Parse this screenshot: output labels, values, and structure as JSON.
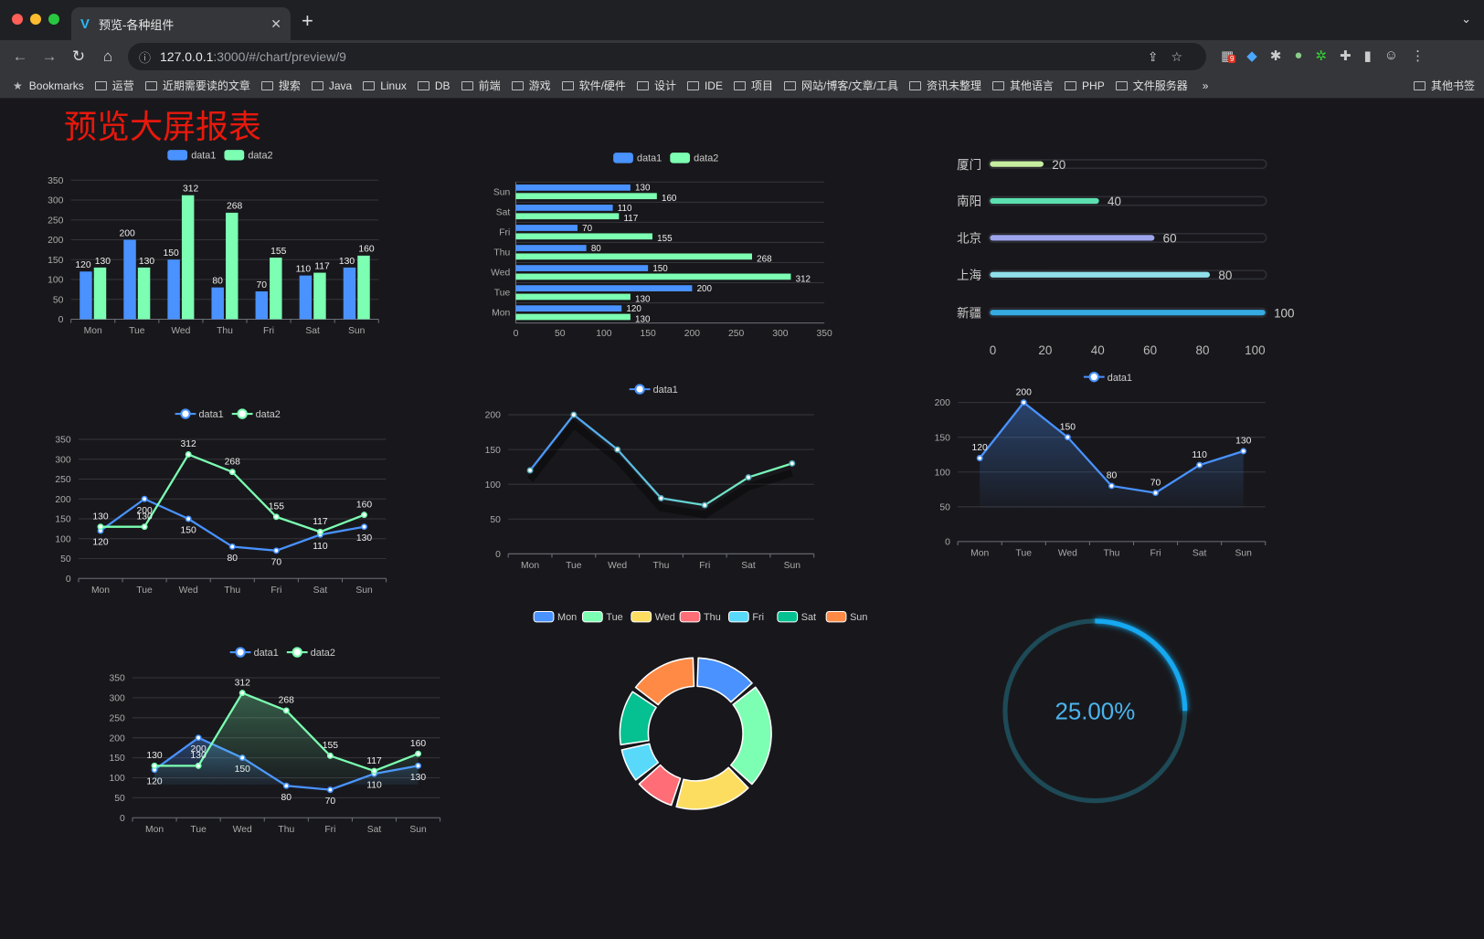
{
  "browser": {
    "tab_title": "预览-各种组件",
    "url_host": "127.0.0.1",
    "url_path": ":3000/#/chart/preview/9",
    "bookmarks_label": "Bookmarks",
    "bookmarks": [
      "运营",
      "近期需要读的文章",
      "搜索",
      "Java",
      "Linux",
      "DB",
      "前端",
      "游戏",
      "软件/硬件",
      "设计",
      "IDE",
      "项目",
      "网站/博客/文章/工具",
      "资讯未整理",
      "其他语言",
      "PHP",
      "文件服务器"
    ],
    "overflow": "»",
    "other_bookmarks": "其他书签",
    "extension_badge": "9"
  },
  "page": {
    "title": "预览大屏报表"
  },
  "colors": {
    "data1": "#4992ff",
    "data2": "#7cffb2",
    "title": "#e8180c",
    "background": "#18181c"
  },
  "chart_data": [
    {
      "id": "bar",
      "type": "bar",
      "categories": [
        "Mon",
        "Tue",
        "Wed",
        "Thu",
        "Fri",
        "Sat",
        "Sun"
      ],
      "series": [
        {
          "name": "data1",
          "values": [
            120,
            200,
            150,
            80,
            70,
            110,
            130
          ]
        },
        {
          "name": "data2",
          "values": [
            130,
            130,
            312,
            268,
            155,
            117,
            160
          ]
        }
      ],
      "ylim": [
        0,
        350
      ],
      "yticks": [
        0,
        50,
        100,
        150,
        200,
        250,
        300,
        350
      ],
      "legend": "top",
      "grid": true
    },
    {
      "id": "hbar",
      "type": "bar",
      "orientation": "horizontal",
      "categories": [
        "Mon",
        "Tue",
        "Wed",
        "Thu",
        "Fri",
        "Sat",
        "Sun"
      ],
      "series": [
        {
          "name": "data1",
          "values": [
            120,
            200,
            150,
            80,
            70,
            110,
            130
          ]
        },
        {
          "name": "data2",
          "values": [
            130,
            130,
            312,
            268,
            155,
            117,
            160
          ]
        }
      ],
      "xlim": [
        0,
        350
      ],
      "xticks": [
        0,
        50,
        100,
        150,
        200,
        250,
        300,
        350
      ],
      "legend": "top",
      "grid": true
    },
    {
      "id": "progress",
      "type": "bar",
      "orientation": "horizontal",
      "categories": [
        "厦门",
        "南阳",
        "北京",
        "上海",
        "新疆"
      ],
      "values": [
        20,
        40,
        60,
        80,
        100
      ],
      "colors": [
        "#c6eda0",
        "#5ce0b0",
        "#9ea5ec",
        "#8fe0ea",
        "#35abe2"
      ],
      "xlim": [
        0,
        100
      ],
      "xticks": [
        0,
        20,
        40,
        60,
        80,
        100
      ]
    },
    {
      "id": "line1",
      "type": "line",
      "categories": [
        "Mon",
        "Tue",
        "Wed",
        "Thu",
        "Fri",
        "Sat",
        "Sun"
      ],
      "series": [
        {
          "name": "data1",
          "values": [
            120,
            200,
            150,
            80,
            70,
            110,
            130
          ]
        },
        {
          "name": "data2",
          "values": [
            130,
            130,
            312,
            268,
            155,
            117,
            160
          ]
        }
      ],
      "ylim": [
        0,
        350
      ],
      "yticks": [
        0,
        50,
        100,
        150,
        200,
        250,
        300,
        350
      ],
      "legend": "top",
      "grid": true,
      "labels": true
    },
    {
      "id": "line2",
      "type": "line",
      "categories": [
        "Mon",
        "Tue",
        "Wed",
        "Thu",
        "Fri",
        "Sat",
        "Sun"
      ],
      "series": [
        {
          "name": "data1",
          "values": [
            120,
            200,
            150,
            80,
            70,
            110,
            130
          ]
        }
      ],
      "ylim": [
        0,
        200
      ],
      "yticks": [
        0,
        50,
        100,
        150,
        200
      ],
      "legend": "top",
      "grid": true,
      "labels": false
    },
    {
      "id": "area1",
      "type": "area",
      "categories": [
        "Mon",
        "Tue",
        "Wed",
        "Thu",
        "Fri",
        "Sat",
        "Sun"
      ],
      "series": [
        {
          "name": "data1",
          "values": [
            120,
            200,
            150,
            80,
            70,
            110,
            130
          ]
        }
      ],
      "ylim": [
        0,
        200
      ],
      "yticks": [
        0,
        50,
        100,
        150,
        200
      ],
      "legend": "top",
      "grid": true,
      "labels": true
    },
    {
      "id": "area2",
      "type": "area",
      "categories": [
        "Mon",
        "Tue",
        "Wed",
        "Thu",
        "Fri",
        "Sat",
        "Sun"
      ],
      "series": [
        {
          "name": "data1",
          "values": [
            120,
            200,
            150,
            80,
            70,
            110,
            130
          ]
        },
        {
          "name": "data2",
          "values": [
            130,
            130,
            312,
            268,
            155,
            117,
            160
          ]
        }
      ],
      "ylim": [
        0,
        350
      ],
      "yticks": [
        0,
        50,
        100,
        150,
        200,
        250,
        300,
        350
      ],
      "legend": "top",
      "grid": true,
      "labels": true
    },
    {
      "id": "pie",
      "type": "pie",
      "categories": [
        "Mon",
        "Tue",
        "Wed",
        "Thu",
        "Fri",
        "Sat",
        "Sun"
      ],
      "values": [
        120,
        200,
        150,
        80,
        70,
        110,
        130
      ],
      "colors": [
        "#4992ff",
        "#7cffb2",
        "#fddd60",
        "#ff6e76",
        "#58d9f9",
        "#05c091",
        "#ff8a45"
      ],
      "donut": true,
      "legend": "top"
    },
    {
      "id": "gauge",
      "type": "pie",
      "values": [
        25
      ],
      "max": 100,
      "label": "25.00%",
      "color": "#12a8f0",
      "track_color": "#1d4a56"
    }
  ]
}
